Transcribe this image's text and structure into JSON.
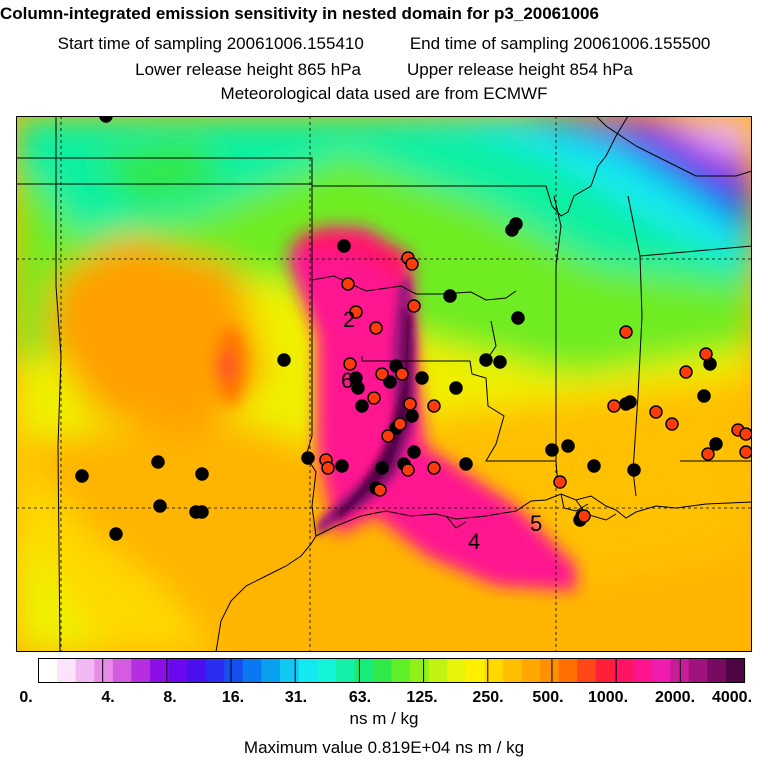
{
  "header": {
    "title": "Column-integrated emission sensitivity in nested domain for p3_20061006",
    "start_label": "Start time of sampling 20061006.155410",
    "end_label": "End time of sampling 20061006.155500",
    "lower_label": "Lower release height  865 hPa",
    "upper_label": "Upper release height  854 hPa",
    "met_label": "Meteorological data used are from ECMWF"
  },
  "colorbar": {
    "tick_labels": [
      "0.",
      "4.",
      "8.",
      "16.",
      "31.",
      "63.",
      "125.",
      "250.",
      "500.",
      "1000.",
      "2000.",
      "4000."
    ],
    "unit": "ns m / kg",
    "colors": [
      "#ffffff",
      "#fbe4fb",
      "#f2b8f2",
      "#e88be8",
      "#d45cde",
      "#b52ee0",
      "#8c0fe8",
      "#6a08f0",
      "#4a10f0",
      "#2a2cf0",
      "#1450f0",
      "#0a78f0",
      "#0aa0f0",
      "#10c8f2",
      "#14e8f0",
      "#14f4d8",
      "#14f0a8",
      "#18ec78",
      "#30e848",
      "#60f028",
      "#90f018",
      "#c0f410",
      "#e8f40a",
      "#fff000",
      "#ffd800",
      "#ffc000",
      "#ffa800",
      "#ff9000",
      "#ff7000",
      "#ff4818",
      "#ff2038",
      "#ff1464",
      "#ff1490",
      "#f01cb0",
      "#c81c98",
      "#a0127e",
      "#780a62",
      "#4e0642"
    ]
  },
  "max_value_label": "Maximum value  0.819E+04 ns m / kg",
  "labels": [
    {
      "text": "2",
      "x": 343,
      "y": 319
    },
    {
      "text": "6",
      "x": 341,
      "y": 380
    },
    {
      "text": "4",
      "x": 468,
      "y": 541
    },
    {
      "text": "5",
      "x": 530,
      "y": 523
    }
  ],
  "colors": {
    "black_marker": "#000000",
    "red_marker": "#ff3b0a"
  }
}
